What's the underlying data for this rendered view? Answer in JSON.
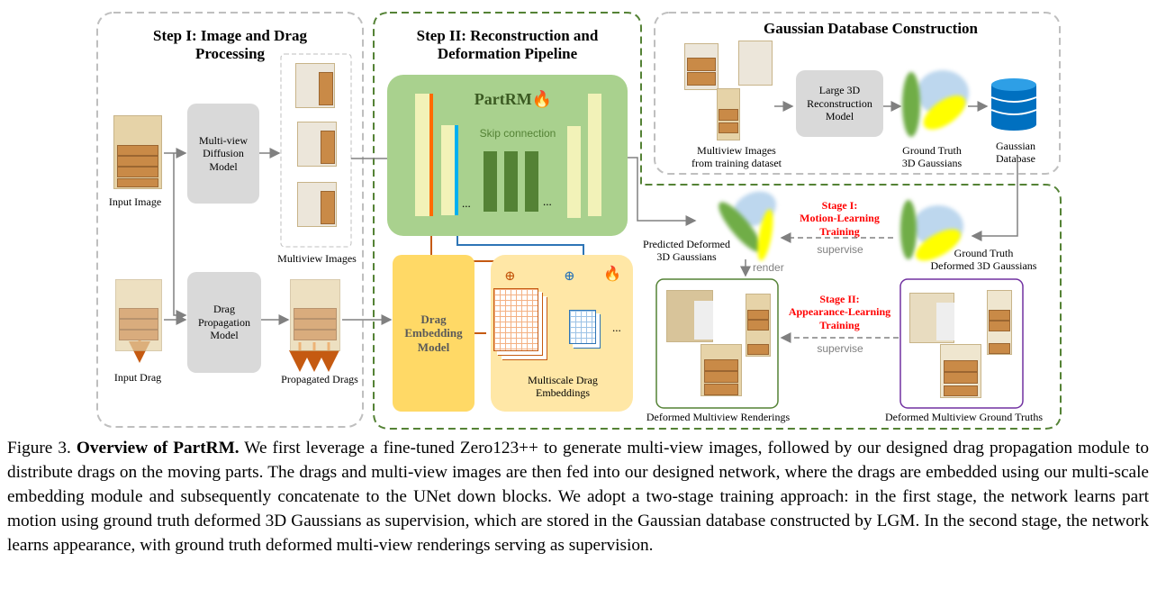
{
  "step1": {
    "title_line1": "Step I: Image and Drag",
    "title_line2": "Processing",
    "input_image_label": "Input Image",
    "diffusion_model": "Multi-view Diffusion Model",
    "multiview_label": "Multiview Images",
    "input_drag_label": "Input Drag",
    "drag_prop_model": "Drag Propagation Model",
    "propagated_label": "Propagated Drags"
  },
  "step2": {
    "title_line1": "Step II: Reconstruction and",
    "title_line2": "Deformation Pipeline",
    "network_name": "PartRM",
    "skip_label": "Skip connection",
    "ellipsis": "...",
    "drag_embed_model": "Drag Embedding Model",
    "multiscale_label_line1": "Multiscale Drag",
    "multiscale_label_line2": "Embeddings",
    "plus": "⊕"
  },
  "gaussian_db": {
    "title": "Gaussian Database Construction",
    "images_label_line1": "Multiview Images",
    "images_label_line2": "from training dataset",
    "lrm": "Large 3D Reconstruction Model",
    "gt_label_line1": "Ground Truth",
    "gt_label_line2": "3D Gaussians",
    "db_label_line1": "Gaussian",
    "db_label_line2": "Database"
  },
  "training": {
    "pred_line1": "Predicted Deformed",
    "pred_line2": "3D Gaussians",
    "stage1_line1": "Stage I:",
    "stage1_line2": "Motion-Learning",
    "stage1_line3": "Training",
    "supervise": "supervise",
    "gt_line1": "Ground Truth",
    "gt_line2": "Deformed 3D Gaussians",
    "render": "render",
    "stage2_line1": "Stage II:",
    "stage2_line2": "Appearance-Learning",
    "stage2_line3": "Training",
    "renderings_label": "Deformed Multiview Renderings",
    "gt_renderings_label": "Deformed Multiview Ground Truths"
  },
  "caption": {
    "prefix": "Figure 3. ",
    "bold": "Overview of PartRM.",
    "text": " We first leverage a fine-tuned Zero123++ to generate multi-view images, followed by our designed drag propagation module to distribute drags on the moving parts. The drags and multi-view images are then fed into our designed network, where the drags are embedded using our multi-scale embedding module and subsequently concatenate to the UNet down blocks. We adopt a two-stage training approach: in the first stage, the network learns part motion using ground truth deformed 3D Gaussians as supervision, which are stored in the Gaussian database constructed by LGM. In the second stage, the network learns appearance, with ground truth deformed multi-view renderings serving as supervision."
  },
  "colors": {
    "green_panel": "#a9d18e",
    "dark_green": "#548235",
    "drag_embed": "#ffd966",
    "multiscale": "#ffe7a6",
    "orange": "#ff6a00",
    "blue": "#00b0f0",
    "stage_red": "#ff0000",
    "purple": "#7030a0"
  }
}
